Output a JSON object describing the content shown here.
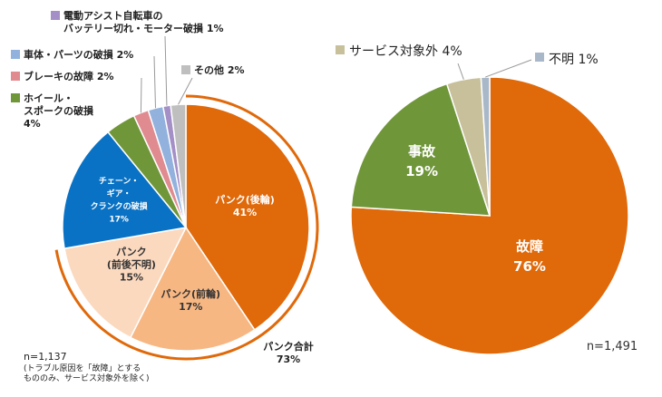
{
  "chart_data": [
    {
      "type": "pie",
      "slices": [
        {
          "label": "パンク(後輪)",
          "value": 41,
          "value_label": "41%",
          "color": "#e0690a"
        },
        {
          "label": "パンク(前輪)",
          "value": 17,
          "value_label": "17%",
          "color": "#f7b783"
        },
        {
          "label": "パンク(前後不明)",
          "value": 15,
          "value_label": "15%",
          "color": "#fbd9bf"
        },
        {
          "label": "チェーン・ギア・クランクの破損",
          "value": 17,
          "value_label": "17%",
          "color": "#0a72c4"
        },
        {
          "label": "ホイール・スポークの破損",
          "value": 4,
          "value_label": "4%",
          "color": "#70963a"
        },
        {
          "label": "ブレーキの故障",
          "value": 2,
          "value_label": "2%",
          "color": "#e08b90"
        },
        {
          "label": "車体・パーツの破損",
          "value": 2,
          "value_label": "2%",
          "color": "#92b2dd"
        },
        {
          "label": "電動アシスト自転車のバッテリー切れ・モーター破損",
          "value": 1,
          "value_label": "1%",
          "color": "#a48fc6"
        },
        {
          "label": "その他",
          "value": 2,
          "value_label": "2%",
          "color": "#bfbfbf"
        }
      ],
      "annotation": {
        "label": "パンク合計",
        "value": "73%"
      },
      "n_label": "n=1,137",
      "note_lines": [
        "(トラブル原因を「故障」とする",
        "もののみ、サービス対象外を除く)"
      ]
    },
    {
      "type": "pie",
      "slices": [
        {
          "label": "故障",
          "value": 76,
          "value_label": "76%",
          "color": "#e0690a"
        },
        {
          "label": "事故",
          "value": 19,
          "value_label": "19%",
          "color": "#70963a"
        },
        {
          "label": "サービス対象外",
          "value": 4,
          "value_label": "4%",
          "color": "#c8c09a"
        },
        {
          "label": "不明",
          "value": 1,
          "value_label": "1%",
          "color": "#a9b8c8"
        }
      ],
      "n_label": "n=1,491"
    }
  ]
}
